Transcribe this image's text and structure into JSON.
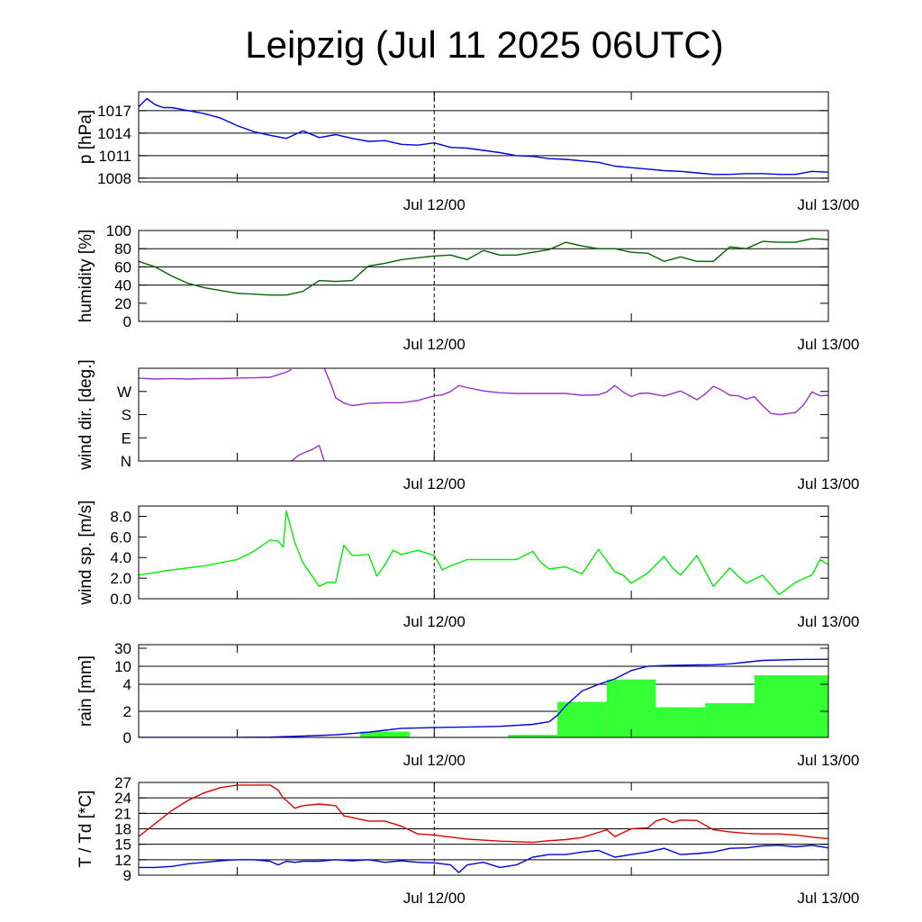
{
  "title": "Leipzig (Jul 11 2025 06UTC)",
  "x_tick_labels": [
    "Jul 12/00",
    "Jul 13/00"
  ],
  "x_range_hours": [
    0,
    42
  ],
  "x_ticks_hours": [
    6,
    18,
    30,
    42
  ],
  "x_label_hours": [
    18,
    42
  ],
  "x_dashed_marker_hours": 18,
  "chart_data": [
    {
      "id": "pressure",
      "type": "line",
      "ylabel": "p [hPa]",
      "ylim": [
        1007.5,
        1019.5
      ],
      "yticks": [
        1008,
        1011,
        1014,
        1017
      ],
      "ytick_labels": [
        "1008",
        "1011",
        "1014",
        "1017"
      ],
      "grid": [
        1008,
        1011,
        1014,
        1017
      ],
      "series": [
        {
          "color": "#0000dd",
          "x": [
            0,
            0.5,
            1,
            1.5,
            2,
            3,
            4,
            5,
            6,
            7,
            8,
            9,
            10,
            11,
            12,
            13,
            14,
            15,
            16,
            17,
            18,
            19,
            20,
            21,
            22,
            23,
            24,
            25,
            26,
            27,
            28,
            29,
            30,
            31,
            32,
            33,
            34,
            35,
            36,
            37,
            38,
            39,
            40,
            41,
            42
          ],
          "y": [
            1017.5,
            1018.6,
            1017.8,
            1017.4,
            1017.4,
            1017.0,
            1016.6,
            1016.0,
            1015.0,
            1014.2,
            1013.7,
            1013.3,
            1014.3,
            1013.4,
            1013.8,
            1013.3,
            1012.9,
            1013.0,
            1012.5,
            1012.4,
            1012.7,
            1012.1,
            1012.0,
            1011.7,
            1011.4,
            1011.0,
            1010.9,
            1010.6,
            1010.5,
            1010.3,
            1010.1,
            1009.6,
            1009.4,
            1009.2,
            1009.0,
            1008.9,
            1008.7,
            1008.5,
            1008.5,
            1008.6,
            1008.6,
            1008.5,
            1008.5,
            1008.9,
            1008.8
          ]
        }
      ]
    },
    {
      "id": "humidity",
      "type": "line",
      "ylabel": "humidity [%]",
      "ylim": [
        0,
        100
      ],
      "yticks": [
        0,
        20,
        40,
        60,
        80,
        100
      ],
      "ytick_labels": [
        "0",
        "20",
        "40",
        "60",
        "80",
        "100"
      ],
      "grid": [
        40,
        60,
        80
      ],
      "series": [
        {
          "color": "#006400",
          "x": [
            0,
            1,
            2,
            3,
            4,
            5,
            6,
            7,
            8,
            9,
            10,
            11,
            12,
            13,
            14,
            15,
            16,
            17,
            18,
            19,
            20,
            21,
            22,
            23,
            24,
            25,
            26,
            27,
            28,
            29,
            30,
            31,
            32,
            33,
            34,
            35,
            36,
            37,
            38,
            39,
            40,
            41,
            42
          ],
          "y": [
            66,
            60,
            50,
            42,
            37,
            34,
            31,
            30,
            29,
            29,
            33,
            45,
            44,
            45,
            61,
            64,
            68,
            70,
            72,
            73,
            68,
            78,
            73,
            73,
            76,
            79,
            87,
            83,
            80,
            80,
            76,
            75,
            66,
            71,
            66,
            66,
            82,
            80,
            88,
            87,
            87,
            91,
            90
          ]
        }
      ]
    },
    {
      "id": "wind_dir",
      "type": "line",
      "ylabel": "wind dir. [deg.]",
      "ylim": [
        0,
        360
      ],
      "yticks": [
        0,
        90,
        180,
        270
      ],
      "ytick_labels": [
        "N",
        "E",
        "S",
        "W"
      ],
      "grid": [],
      "series": [
        {
          "color": "#9932cc",
          "x": [
            0,
            1,
            2,
            3,
            4,
            5,
            6,
            7,
            8,
            9,
            9.3
          ],
          "y": [
            322,
            318,
            320,
            318,
            320,
            320,
            322,
            323,
            325,
            345,
            355
          ]
        },
        {
          "color": "#9932cc",
          "x": [
            11.3,
            11.7,
            12,
            12.5,
            13,
            14,
            15,
            16,
            17,
            18,
            18.5,
            19,
            19.5,
            20,
            21,
            22,
            23,
            24,
            25,
            26,
            27,
            28,
            28.5,
            29,
            29.5,
            30,
            30.5,
            31,
            32,
            33,
            34,
            34.5,
            35,
            35.5,
            36,
            36.5,
            37,
            37.5,
            38,
            38.5,
            39,
            40,
            40.5,
            41,
            41.5,
            42
          ],
          "y": [
            360,
            300,
            245,
            225,
            215,
            224,
            226,
            226,
            235,
            253,
            257,
            270,
            293,
            285,
            272,
            265,
            262,
            262,
            262,
            262,
            255,
            257,
            268,
            293,
            268,
            250,
            262,
            264,
            252,
            272,
            238,
            260,
            290,
            275,
            255,
            253,
            240,
            250,
            215,
            185,
            180,
            188,
            218,
            268,
            253,
            255
          ]
        },
        {
          "color": "#9932cc",
          "x": [
            9.3,
            9.7,
            10,
            10.5,
            11,
            11.3
          ],
          "y": [
            0,
            20,
            30,
            43,
            60,
            0
          ]
        }
      ]
    },
    {
      "id": "wind_speed",
      "type": "line",
      "ylabel": "wind sp. [m/s]",
      "ylim": [
        0,
        9
      ],
      "yticks": [
        0,
        2,
        4,
        6,
        8
      ],
      "ytick_labels": [
        "0.0",
        "2.0",
        "4.0",
        "6.0",
        "8.0"
      ],
      "grid": [],
      "series": [
        {
          "color": "#00ee00",
          "x": [
            0,
            2,
            4,
            6,
            7,
            8,
            8.5,
            8.8,
            9,
            9.5,
            10,
            11,
            11.5,
            12,
            12.5,
            13,
            14,
            14.5,
            15,
            15.5,
            16,
            17,
            18,
            18.5,
            19,
            20,
            21,
            22,
            23,
            24,
            24.5,
            25,
            26,
            27,
            28,
            29,
            29.5,
            30,
            31,
            32,
            32.5,
            33,
            34,
            35,
            36,
            36.5,
            37,
            38,
            39,
            40,
            41,
            41.5,
            42
          ],
          "y": [
            2.3,
            2.8,
            3.2,
            3.8,
            4.6,
            5.7,
            5.6,
            5,
            8.5,
            5.5,
            3.5,
            1.2,
            1.6,
            1.6,
            5.2,
            4.2,
            4.3,
            2.2,
            3.3,
            4.7,
            4.3,
            4.7,
            4.2,
            2.8,
            3.2,
            3.8,
            3.8,
            3.8,
            3.8,
            4.6,
            3.5,
            2.9,
            3.1,
            2.4,
            4.8,
            2.6,
            2.3,
            1.5,
            2.5,
            4.1,
            3.0,
            2.3,
            4.2,
            1.2,
            3.0,
            2.2,
            1.5,
            2.3,
            0.4,
            1.6,
            2.3,
            3.8,
            3.3
          ]
        }
      ]
    },
    {
      "id": "rain",
      "type": "bar+line",
      "ylabel": "rain [mm]",
      "y_scale": "nonlinear",
      "yticks": [
        0,
        2,
        4,
        10,
        30
      ],
      "ytick_labels": [
        "0",
        "2",
        "4",
        "10",
        "30"
      ],
      "grid": [
        2,
        4,
        10
      ],
      "bars": {
        "color": "#33ff33",
        "x_start": [
          13.5,
          16.5,
          19.5,
          22.5,
          25.5,
          28.5,
          31.5,
          34.5,
          37.5
        ],
        "x_end": [
          16.5,
          19.5,
          22.5,
          25.5,
          28.5,
          31.5,
          34.5,
          37.5,
          42
        ],
        "values": [
          0.45,
          0.0,
          0.03,
          0.2,
          2.7,
          5.6,
          2.3,
          2.6,
          7.0
        ]
      },
      "series": [
        {
          "color": "#0000dd",
          "x": [
            0,
            6,
            8,
            10,
            12,
            14,
            15,
            16,
            18,
            20,
            22,
            24,
            25,
            25.5,
            26,
            27,
            28,
            29,
            30,
            31,
            32,
            33,
            34,
            35,
            36,
            38,
            40,
            42
          ],
          "y": [
            0,
            0,
            0.02,
            0.1,
            0.2,
            0.4,
            0.55,
            0.7,
            0.75,
            0.8,
            0.85,
            1.0,
            1.2,
            1.7,
            2.4,
            3.5,
            4.0,
            5.8,
            8.6,
            10.0,
            10.8,
            11.2,
            11.5,
            11.7,
            12.7,
            16.5,
            17.5,
            17.8
          ]
        }
      ]
    },
    {
      "id": "temperature",
      "type": "line",
      "ylabel": "T / Td [*C]",
      "ylim": [
        9,
        27
      ],
      "yticks": [
        9,
        12,
        15,
        18,
        21,
        24,
        27
      ],
      "ytick_labels": [
        "9",
        "12",
        "15",
        "18",
        "21",
        "24",
        "27"
      ],
      "grid": [
        12,
        15,
        18,
        21,
        24
      ],
      "series": [
        {
          "name": "T",
          "color": "#dd0000",
          "x": [
            0,
            1,
            2,
            3,
            4,
            5,
            6,
            7,
            8,
            8.5,
            8.8,
            9,
            9.5,
            10,
            11,
            12,
            12.5,
            13,
            14,
            15,
            16,
            17,
            18,
            19,
            20,
            21,
            22,
            23,
            24,
            25,
            26,
            27,
            28,
            28.5,
            29,
            30,
            31,
            31.5,
            32,
            32.5,
            33,
            34,
            35,
            36,
            37,
            38,
            39,
            40,
            41,
            42
          ],
          "y": [
            16.5,
            19,
            21.5,
            23.5,
            25,
            26,
            26.5,
            26.5,
            26.5,
            25.5,
            24,
            23.5,
            22,
            22.5,
            22.8,
            22.5,
            20.5,
            20.2,
            19.5,
            19.5,
            18.5,
            17,
            16.8,
            16.4,
            16.0,
            15.8,
            15.6,
            15.5,
            15.4,
            15.7,
            15.9,
            16.3,
            17.3,
            17.8,
            16.5,
            18,
            18.2,
            19.5,
            20.0,
            19.2,
            19.7,
            19.6,
            17.8,
            17.4,
            17.1,
            17.0,
            17.0,
            16.8,
            16.4,
            16.1
          ]
        },
        {
          "name": "Td",
          "color": "#0000dd",
          "x": [
            0,
            1,
            2,
            3,
            4,
            5,
            6,
            7,
            8,
            8.5,
            9,
            9.5,
            10,
            11,
            12,
            13,
            14,
            15,
            16,
            17,
            18,
            19,
            19.5,
            20,
            21,
            22,
            23,
            24,
            25,
            26,
            27,
            28,
            29,
            30,
            31,
            32,
            33,
            34,
            35,
            36,
            37,
            38,
            39,
            40,
            41,
            42
          ],
          "y": [
            10.5,
            10.5,
            10.7,
            11.2,
            11.5,
            11.8,
            12.0,
            12.0,
            11.7,
            11.0,
            11.7,
            11.5,
            11.7,
            11.7,
            12.0,
            11.8,
            12.0,
            11.5,
            11.8,
            11.5,
            11.4,
            11.0,
            9.5,
            11.0,
            11.5,
            10.5,
            11.0,
            12.5,
            13.0,
            13.0,
            13.5,
            13.8,
            12.5,
            13.0,
            13.5,
            14.2,
            13.0,
            13.2,
            13.5,
            14.2,
            14.3,
            14.7,
            14.8,
            14.5,
            14.8,
            14.3
          ]
        }
      ]
    }
  ]
}
